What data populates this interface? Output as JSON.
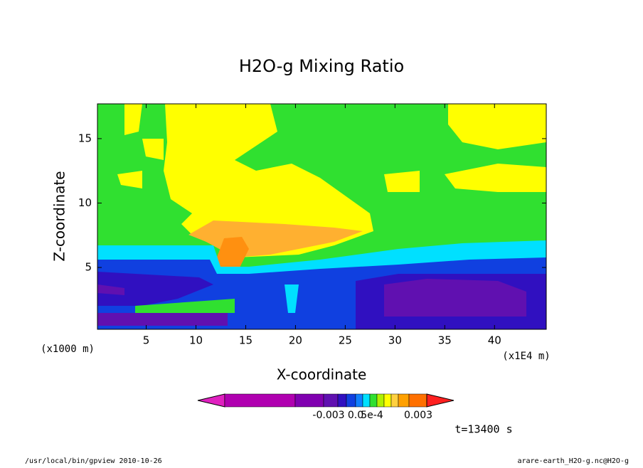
{
  "chart_data": {
    "type": "contour",
    "title": "H2O-g Mixing Ratio",
    "xlabel": "X-coordinate",
    "ylabel": "Z-coordinate",
    "x_unit": "(x1E4 m)",
    "y_unit": "(x1000 m)",
    "xlim": [
      0.1,
      45.2
    ],
    "xticks": [
      5,
      10,
      15,
      20,
      25,
      30,
      35,
      40
    ],
    "ylim": [
      0.2,
      17.7
    ],
    "yticks": [
      5,
      10,
      15
    ],
    "colorbar_colors": [
      "#e020c0",
      "#b000b0",
      "#8000b0",
      "#6010b0",
      "#3010c0",
      "#1040e0",
      "#1080ff",
      "#00e0ff",
      "#30e030",
      "#b0f000",
      "#ffff00",
      "#ffd040",
      "#ffa000",
      "#ff7000",
      "#ff2020"
    ],
    "colorbar_labels": [
      "-0.003",
      "0.0",
      "5e-4",
      "0.003"
    ],
    "time_label": "t=13400 s",
    "footer_left": "/usr/local/bin/gpview  2010-10-26",
    "footer_right": "arare-earth_H2O-g.nc@H2O-g"
  }
}
